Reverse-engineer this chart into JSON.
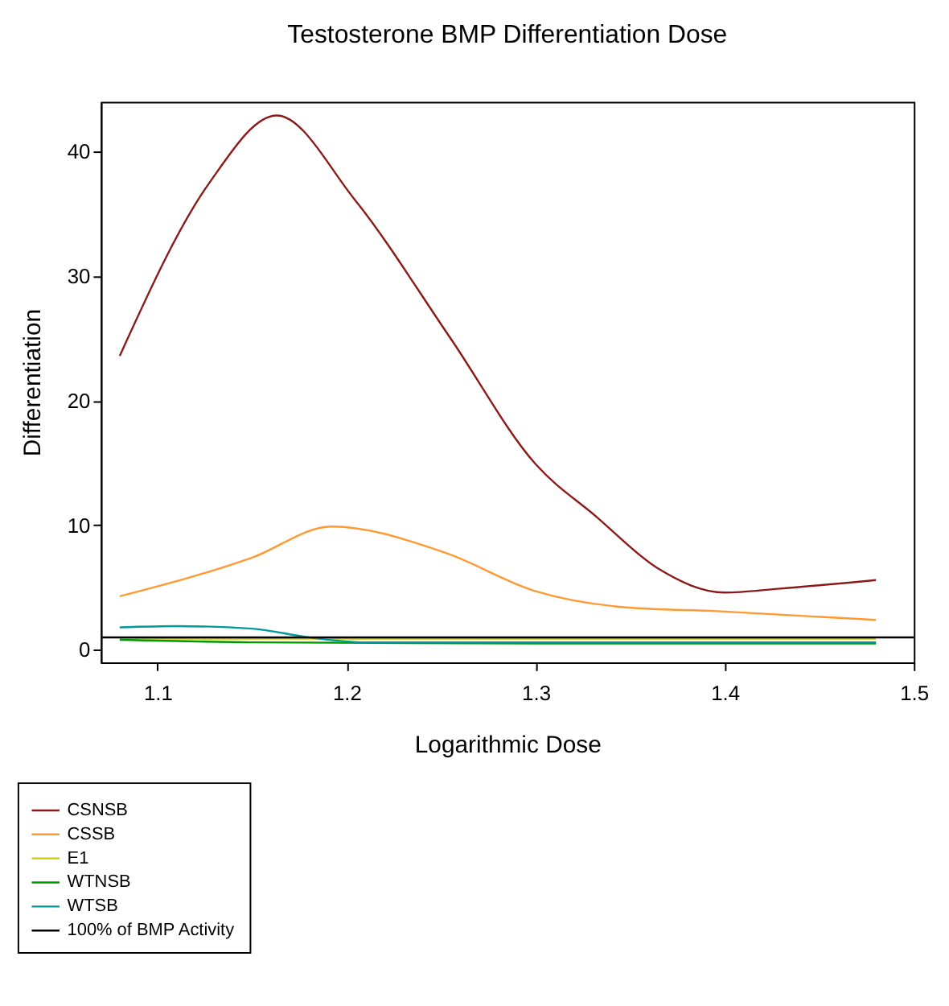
{
  "chart_data": {
    "type": "line",
    "title": "Testosterone BMP Differentiation Dose",
    "xlabel": "Logarithmic Dose",
    "ylabel": "Differentiation",
    "xlim": [
      1.07,
      1.5
    ],
    "xticks": [
      1.1,
      1.2,
      1.3,
      1.4,
      1.5
    ],
    "ylim": [
      -1,
      44
    ],
    "yticks": [
      0,
      10,
      20,
      30,
      40
    ],
    "grid": false,
    "legend": "bottom left",
    "marker": "none",
    "line_style": "solid",
    "series": [
      {
        "name": "CSNSB",
        "color": "#8b1a1a",
        "x": [
          1.08,
          1.127,
          1.163,
          1.204,
          1.255,
          1.3,
          1.332,
          1.364,
          1.4,
          1.428,
          1.48
        ],
        "values": [
          23.6,
          37.4,
          42.9,
          36.2,
          25,
          14.9,
          10.7,
          6.6,
          4.6,
          4.9,
          5.6
        ]
      },
      {
        "name": "CSSB",
        "color": "#ff9933",
        "x": [
          1.08,
          1.15,
          1.192,
          1.252,
          1.3,
          1.348,
          1.396,
          1.48
        ],
        "values": [
          4.3,
          7.4,
          9.9,
          7.8,
          4.7,
          3.4,
          3.1,
          2.4
        ]
      },
      {
        "name": "E1",
        "color": "#cccc00",
        "x": [
          1.08,
          1.3,
          1.48
        ],
        "values": [
          0.9,
          0.9,
          0.9
        ]
      },
      {
        "name": "WTNSB",
        "color": "#009900",
        "x": [
          1.08,
          1.15,
          1.3,
          1.48
        ],
        "values": [
          0.8,
          0.6,
          0.5,
          0.5
        ]
      },
      {
        "name": "WTSB",
        "color": "#009999",
        "x": [
          1.08,
          1.11,
          1.15,
          1.18,
          1.21,
          1.3,
          1.48
        ],
        "values": [
          1.8,
          1.9,
          1.7,
          1.0,
          0.6,
          0.6,
          0.6
        ]
      },
      {
        "name": "100% of BMP Activity",
        "color": "#000000",
        "x": [
          1.07,
          1.5
        ],
        "values": [
          1,
          1
        ]
      }
    ]
  }
}
